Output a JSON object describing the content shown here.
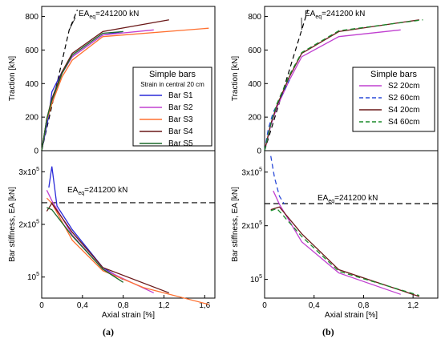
{
  "panel_labels": [
    "(a)",
    "(b)"
  ],
  "chart_data": [
    {
      "type": "line",
      "panel": "(a)",
      "position": "top",
      "ylabel": "Traction [kN]",
      "xlabel": "",
      "xlim": [
        0,
        1.7
      ],
      "ylim": [
        0,
        860
      ],
      "y_ticks": [
        0,
        200,
        400,
        600,
        800
      ],
      "y_tick_labels": [
        "0",
        "200",
        "400",
        "600",
        "800"
      ],
      "grid": false,
      "annotation": {
        "text_main": "EA",
        "text_sub": "eq",
        "text_rest": "=241200 kN",
        "slope_line": [
          [
            0,
            0
          ],
          [
            0.27,
            720
          ],
          [
            0.35,
            840
          ]
        ]
      },
      "legend": {
        "title": "Simple bars",
        "subtitle": "Strain in central 20 cm",
        "placement": "right",
        "entries": [
          "Bar S1",
          "Bar S2",
          "Bar S3",
          "Bar S4",
          "Bar S5"
        ]
      },
      "series": [
        {
          "name": "Bar S1",
          "color": "#2a2ad8",
          "dash": "solid",
          "points": [
            [
              0,
              0
            ],
            [
              0.07,
              210
            ],
            [
              0.1,
              350
            ],
            [
              0.2,
              470
            ],
            [
              0.3,
              560
            ],
            [
              0.6,
              690
            ],
            [
              0.8,
              710
            ]
          ]
        },
        {
          "name": "Bar S2",
          "color": "#c040d0",
          "dash": "solid",
          "points": [
            [
              0,
              0
            ],
            [
              0.05,
              190
            ],
            [
              0.1,
              290
            ],
            [
              0.2,
              460
            ],
            [
              0.3,
              560
            ],
            [
              0.6,
              690
            ],
            [
              1.1,
              720
            ]
          ]
        },
        {
          "name": "Bar S3",
          "color": "#ff7030",
          "dash": "solid",
          "points": [
            [
              0,
              0
            ],
            [
              0.05,
              180
            ],
            [
              0.1,
              280
            ],
            [
              0.2,
              440
            ],
            [
              0.3,
              540
            ],
            [
              0.6,
              680
            ],
            [
              1.64,
              730
            ]
          ]
        },
        {
          "name": "Bar S4",
          "color": "#6a1818",
          "dash": "solid",
          "points": [
            [
              0,
              0
            ],
            [
              0.05,
              190
            ],
            [
              0.1,
              310
            ],
            [
              0.2,
              470
            ],
            [
              0.3,
              580
            ],
            [
              0.6,
              710
            ],
            [
              1.25,
              780
            ]
          ]
        },
        {
          "name": "Bar S5",
          "color": "#1a6a2a",
          "dash": "solid",
          "points": [
            [
              0,
              0
            ],
            [
              0.05,
              190
            ],
            [
              0.1,
              300
            ],
            [
              0.2,
              460
            ],
            [
              0.3,
              570
            ],
            [
              0.6,
              700
            ],
            [
              0.8,
              710
            ]
          ]
        }
      ]
    },
    {
      "type": "line",
      "panel": "(a)",
      "position": "bottom",
      "ylabel": "Bar stiffness, EA [kN]",
      "xlabel": "Axial strain [%]",
      "xlim": [
        0,
        1.7
      ],
      "ylim": [
        60000,
        340000
      ],
      "x_ticks": [
        0,
        0.4,
        0.8,
        1.2,
        1.6
      ],
      "x_tick_labels": [
        "0",
        "0,4",
        "0,8",
        "1,2",
        "1,6"
      ],
      "y_ticks": [
        100000,
        200000,
        300000
      ],
      "y_tick_labels": [
        {
          "base": "10",
          "exp": "5"
        },
        {
          "base": "2x10",
          "exp": "5"
        },
        {
          "base": "3x10",
          "exp": "5"
        }
      ],
      "reference_line": {
        "value": 241200,
        "text_main": "EA",
        "text_sub": "eq",
        "text_rest": "=241200 kN"
      },
      "grid": false,
      "series": [
        {
          "name": "Bar S1",
          "color": "#2a2ad8",
          "dash": "solid",
          "points": [
            [
              0.07,
              270000
            ],
            [
              0.1,
              310000
            ],
            [
              0.15,
              235000
            ],
            [
              0.3,
              190000
            ],
            [
              0.6,
              118000
            ],
            [
              0.8,
              95000
            ]
          ]
        },
        {
          "name": "Bar S2",
          "color": "#c040d0",
          "dash": "solid",
          "points": [
            [
              0.05,
              265000
            ],
            [
              0.1,
              245000
            ],
            [
              0.3,
              180000
            ],
            [
              0.6,
              115000
            ],
            [
              1.1,
              70000
            ]
          ]
        },
        {
          "name": "Bar S3",
          "color": "#ff7030",
          "dash": "solid",
          "points": [
            [
              0.05,
              250000
            ],
            [
              0.1,
              240000
            ],
            [
              0.3,
              170000
            ],
            [
              0.6,
              112000
            ],
            [
              1.0,
              80000
            ],
            [
              1.64,
              48000
            ]
          ]
        },
        {
          "name": "Bar S4",
          "color": "#6a1818",
          "dash": "solid",
          "points": [
            [
              0.05,
              225000
            ],
            [
              0.1,
              240000
            ],
            [
              0.3,
              185000
            ],
            [
              0.6,
              118000
            ],
            [
              1.25,
              70000
            ]
          ]
        },
        {
          "name": "Bar S5",
          "color": "#1a6a2a",
          "dash": "solid",
          "points": [
            [
              0.05,
              232000
            ],
            [
              0.1,
              228000
            ],
            [
              0.3,
              178000
            ],
            [
              0.6,
              115000
            ],
            [
              0.8,
              90000
            ]
          ]
        }
      ]
    },
    {
      "type": "line",
      "panel": "(b)",
      "position": "top",
      "ylabel": "Traction [kN]",
      "xlabel": "",
      "xlim": [
        0,
        1.4
      ],
      "ylim": [
        0,
        860
      ],
      "y_ticks": [
        0,
        200,
        400,
        600,
        800
      ],
      "y_tick_labels": [
        "0",
        "200",
        "400",
        "600",
        "800"
      ],
      "grid": false,
      "annotation": {
        "text_main": "EA",
        "text_sub": "eq",
        "text_rest": "=241200 kN",
        "slope_line": [
          [
            0,
            0
          ],
          [
            0.3,
            720
          ],
          [
            0.35,
            840
          ]
        ]
      },
      "legend": {
        "title": "Simple bars",
        "subtitle": "",
        "placement": "right",
        "entries": [
          "S2 20cm",
          "S2 60cm",
          "S4 20cm",
          "S4 60cm"
        ]
      },
      "series": [
        {
          "name": "S2 20cm",
          "color": "#c040d0",
          "dash": "solid",
          "points": [
            [
              0,
              0
            ],
            [
              0.05,
              150
            ],
            [
              0.1,
              260
            ],
            [
              0.2,
              420
            ],
            [
              0.3,
              560
            ],
            [
              0.6,
              680
            ],
            [
              1.1,
              720
            ]
          ]
        },
        {
          "name": "S2 60cm",
          "color": "#2a4ad8",
          "dash": "dashed",
          "points": [
            [
              0,
              0
            ],
            [
              0.03,
              130
            ],
            [
              0.07,
              230
            ],
            [
              0.12,
              300
            ],
            [
              0.2,
              420
            ]
          ]
        },
        {
          "name": "S4 20cm",
          "color": "#6a1818",
          "dash": "solid",
          "points": [
            [
              0,
              0
            ],
            [
              0.05,
              160
            ],
            [
              0.1,
              270
            ],
            [
              0.2,
              440
            ],
            [
              0.3,
              580
            ],
            [
              0.6,
              710
            ],
            [
              1.25,
              780
            ]
          ]
        },
        {
          "name": "S4 60cm",
          "color": "#1a8a2a",
          "dash": "dashed",
          "points": [
            [
              0,
              0
            ],
            [
              0.05,
              160
            ],
            [
              0.1,
              280
            ],
            [
              0.2,
              450
            ],
            [
              0.3,
              585
            ],
            [
              0.6,
              715
            ],
            [
              1.28,
              780
            ]
          ]
        }
      ]
    },
    {
      "type": "line",
      "panel": "(b)",
      "position": "bottom",
      "ylabel": "Bar stiffness, EA [kN]",
      "xlabel": "Axial strain [%]",
      "xlim": [
        0,
        1.4
      ],
      "ylim": [
        65000,
        340000
      ],
      "x_ticks": [
        0,
        0.4,
        0.8,
        1.2
      ],
      "x_tick_labels": [
        "0",
        "0,4",
        "0,8",
        "1,2"
      ],
      "y_ticks": [
        100000,
        200000,
        300000
      ],
      "y_tick_labels": [
        {
          "base": "10",
          "exp": "5"
        },
        {
          "base": "2x10",
          "exp": "5"
        },
        {
          "base": "3x10",
          "exp": "5"
        }
      ],
      "reference_line": {
        "value": 241200,
        "text_main": "EA",
        "text_sub": "eq",
        "text_rest": "=241200 kN"
      },
      "grid": false,
      "series": [
        {
          "name": "S2 20cm",
          "color": "#c040d0",
          "dash": "solid",
          "points": [
            [
              0.07,
              265000
            ],
            [
              0.12,
              240000
            ],
            [
              0.3,
              170000
            ],
            [
              0.6,
              112000
            ],
            [
              1.1,
              72000
            ]
          ]
        },
        {
          "name": "S2 60cm",
          "color": "#2a4ad8",
          "dash": "dashed",
          "points": [
            [
              0.05,
              330000
            ],
            [
              0.08,
              290000
            ],
            [
              0.12,
              255000
            ],
            [
              0.16,
              240000
            ]
          ]
        },
        {
          "name": "S4 20cm",
          "color": "#6a1818",
          "dash": "solid",
          "points": [
            [
              0.05,
              230000
            ],
            [
              0.12,
              235000
            ],
            [
              0.3,
              185000
            ],
            [
              0.6,
              118000
            ],
            [
              1.25,
              68000
            ]
          ]
        },
        {
          "name": "S4 60cm",
          "color": "#1a8a2a",
          "dash": "dashed",
          "points": [
            [
              0.05,
              228000
            ],
            [
              0.1,
              232000
            ],
            [
              0.3,
              180000
            ],
            [
              0.6,
              115000
            ],
            [
              1.25,
              70000
            ]
          ]
        }
      ]
    }
  ]
}
